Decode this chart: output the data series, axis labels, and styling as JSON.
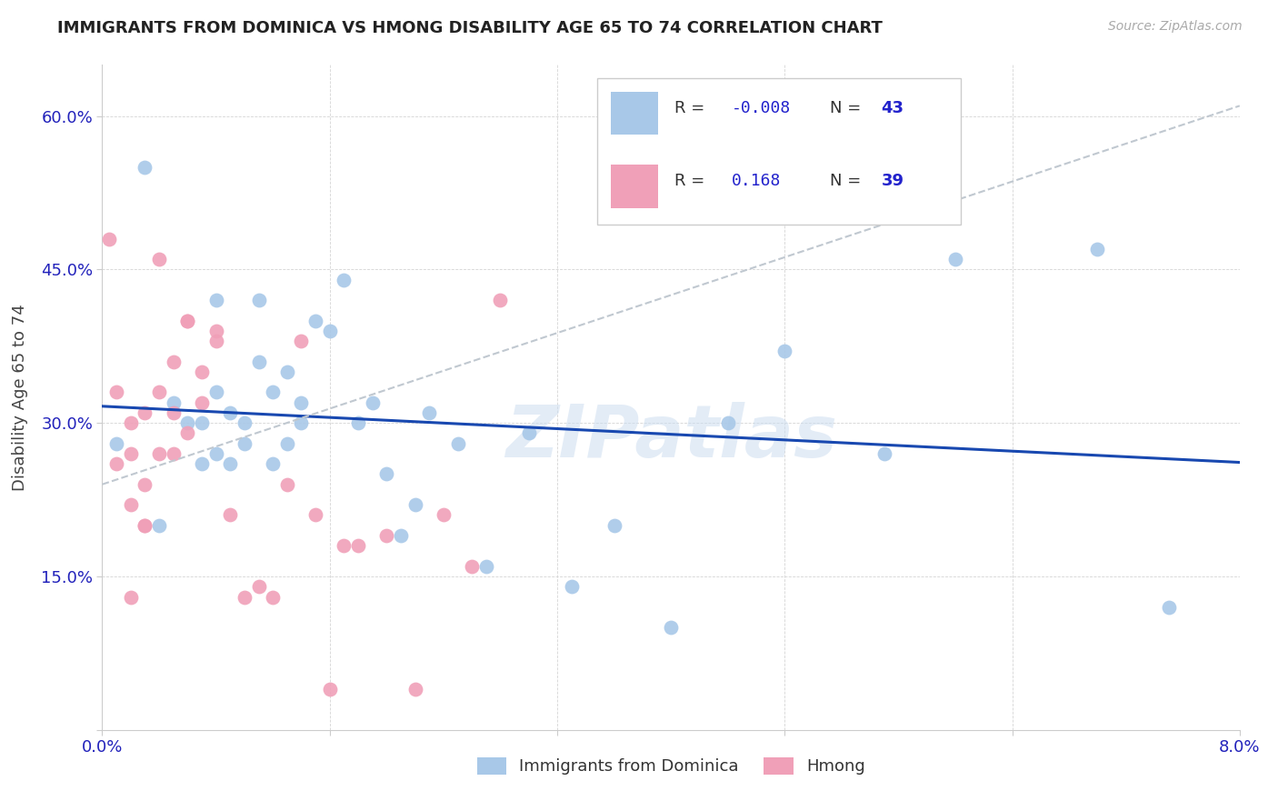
{
  "title": "IMMIGRANTS FROM DOMINICA VS HMONG DISABILITY AGE 65 TO 74 CORRELATION CHART",
  "source": "Source: ZipAtlas.com",
  "ylabel": "Disability Age 65 to 74",
  "xlim": [
    0.0,
    0.08
  ],
  "ylim": [
    0.0,
    0.65
  ],
  "blue_color": "#a8c8e8",
  "pink_color": "#f0a0b8",
  "line_blue": "#1848b0",
  "line_dashed": "#c0c8d0",
  "watermark": "ZIPatlas",
  "legend_label1": "Immigrants from Dominica",
  "legend_label2": "Hmong",
  "blue_scatter_x": [
    0.001,
    0.003,
    0.004,
    0.005,
    0.006,
    0.007,
    0.007,
    0.008,
    0.008,
    0.008,
    0.009,
    0.009,
    0.01,
    0.01,
    0.011,
    0.011,
    0.012,
    0.012,
    0.013,
    0.013,
    0.014,
    0.014,
    0.015,
    0.016,
    0.017,
    0.018,
    0.019,
    0.02,
    0.021,
    0.022,
    0.023,
    0.025,
    0.027,
    0.03,
    0.033,
    0.036,
    0.04,
    0.044,
    0.048,
    0.055,
    0.06,
    0.07,
    0.075
  ],
  "blue_scatter_y": [
    0.28,
    0.55,
    0.2,
    0.32,
    0.3,
    0.26,
    0.3,
    0.27,
    0.33,
    0.42,
    0.31,
    0.26,
    0.3,
    0.28,
    0.36,
    0.42,
    0.33,
    0.26,
    0.28,
    0.35,
    0.32,
    0.3,
    0.4,
    0.39,
    0.44,
    0.3,
    0.32,
    0.25,
    0.19,
    0.22,
    0.31,
    0.28,
    0.16,
    0.29,
    0.14,
    0.2,
    0.1,
    0.3,
    0.37,
    0.27,
    0.46,
    0.47,
    0.12
  ],
  "pink_scatter_x": [
    0.0005,
    0.001,
    0.001,
    0.002,
    0.002,
    0.002,
    0.003,
    0.003,
    0.004,
    0.004,
    0.005,
    0.005,
    0.005,
    0.006,
    0.006,
    0.007,
    0.007,
    0.008,
    0.008,
    0.009,
    0.01,
    0.011,
    0.012,
    0.013,
    0.014,
    0.015,
    0.016,
    0.017,
    0.018,
    0.02,
    0.022,
    0.024,
    0.026,
    0.028,
    0.002,
    0.003,
    0.003,
    0.004,
    0.006
  ],
  "pink_scatter_y": [
    0.48,
    0.26,
    0.33,
    0.22,
    0.27,
    0.3,
    0.24,
    0.31,
    0.27,
    0.33,
    0.27,
    0.31,
    0.36,
    0.29,
    0.4,
    0.32,
    0.35,
    0.39,
    0.38,
    0.21,
    0.13,
    0.14,
    0.13,
    0.24,
    0.38,
    0.21,
    0.04,
    0.18,
    0.18,
    0.19,
    0.04,
    0.21,
    0.16,
    0.42,
    0.13,
    0.2,
    0.2,
    0.46,
    0.4
  ]
}
